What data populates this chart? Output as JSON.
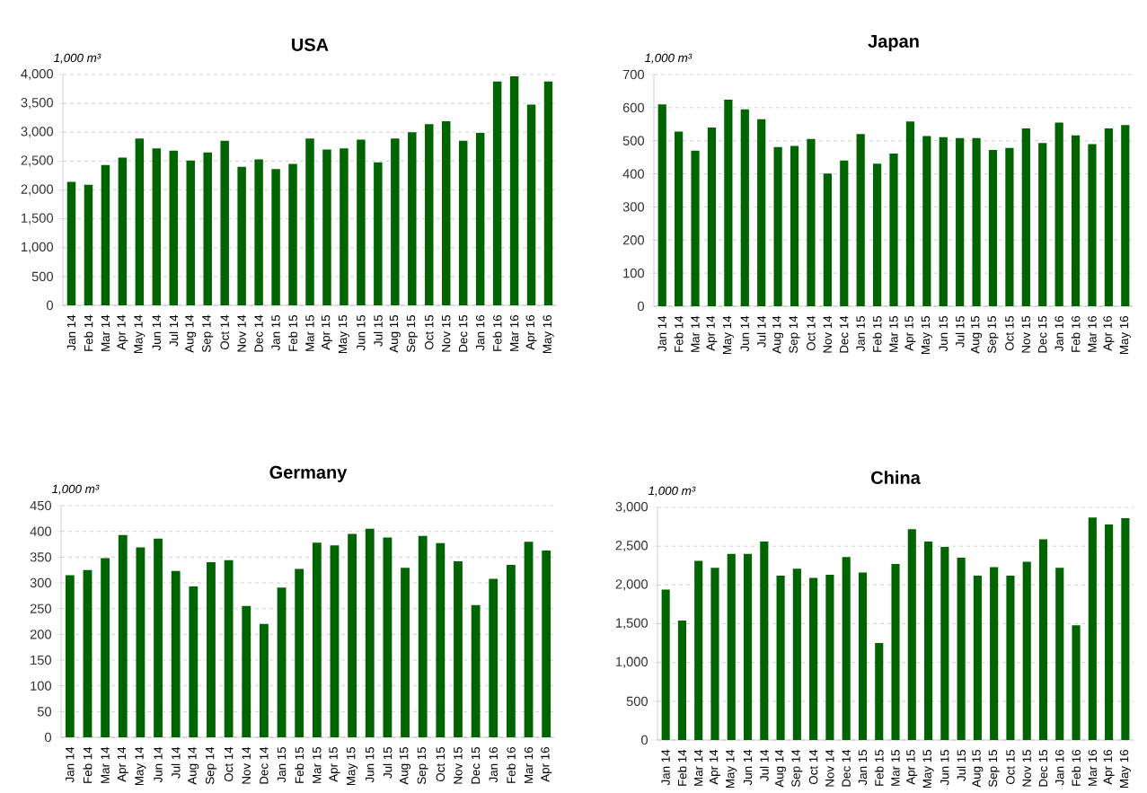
{
  "chart_data": [
    {
      "type": "bar",
      "title": "USA",
      "ylabel": "1,000 m³",
      "color": "#006400",
      "grid": "y",
      "categories": [
        "Jan 14",
        "Feb 14",
        "Mar 14",
        "Apr 14",
        "May 14",
        "Jun 14",
        "Jul 14",
        "Aug 14",
        "Sep 14",
        "Oct 14",
        "Nov 14",
        "Dec 14",
        "Jan 15",
        "Feb 15",
        "Mar 15",
        "Apr 15",
        "May 15",
        "Jun 15",
        "Jul 15",
        "Aug 15",
        "Sep 15",
        "Oct 15",
        "Nov 15",
        "Dec 15",
        "Jan 16",
        "Feb 16",
        "Mar 16",
        "Apr 16",
        "May 16"
      ],
      "values": [
        2140,
        2090,
        2430,
        2560,
        2890,
        2720,
        2680,
        2510,
        2650,
        2850,
        2400,
        2530,
        2360,
        2450,
        2890,
        2700,
        2720,
        2870,
        2480,
        2890,
        3000,
        3140,
        3190,
        2850,
        2990,
        3880,
        3970,
        3480,
        3880
      ],
      "ylim": [
        0,
        4000
      ],
      "yticks": [
        0,
        500,
        {
          "value": 1000,
          "label": "1,000"
        },
        {
          "value": 1500,
          "label": "1,500"
        },
        {
          "value": 2000,
          "label": "2,000"
        },
        {
          "value": 2500,
          "label": "2,500"
        },
        {
          "value": 3000,
          "label": "3,000"
        },
        {
          "value": 3500,
          "label": "3,500"
        },
        {
          "value": 4000,
          "label": "4,000"
        }
      ]
    },
    {
      "type": "bar",
      "title": "Japan",
      "ylabel": "1,000 m³",
      "color": "#006400",
      "grid": "y",
      "categories": [
        "Jan 14",
        "Feb 14",
        "Mar 14",
        "Apr 14",
        "May 14",
        "Jun 14",
        "Jul 14",
        "Aug 14",
        "Sep 14",
        "Oct 14",
        "Nov 14",
        "Dec 14",
        "Jan 15",
        "Feb 15",
        "Mar 15",
        "Apr 15",
        "May 15",
        "Jun 15",
        "Jul 15",
        "Aug 15",
        "Sep 15",
        "Oct 15",
        "Nov 15",
        "Dec 15",
        "Jan 16",
        "Feb 16",
        "Mar 16",
        "Apr 16",
        "May 16"
      ],
      "values": [
        610,
        528,
        470,
        540,
        624,
        595,
        565,
        481,
        484,
        505,
        401,
        440,
        520,
        431,
        461,
        558,
        514,
        511,
        508,
        508,
        472,
        478,
        537,
        493,
        555,
        516,
        490,
        537,
        547
      ],
      "ylim": [
        0,
        700
      ],
      "yticks": [
        0,
        100,
        200,
        300,
        400,
        500,
        600,
        700
      ]
    },
    {
      "type": "bar",
      "title": "Germany",
      "ylabel": "1,000 m³",
      "color": "#006400",
      "grid": "y",
      "categories": [
        "Jan 14",
        "Feb 14",
        "Mar 14",
        "Apr 14",
        "May 14",
        "Jun 14",
        "Jul 14",
        "Aug 14",
        "Sep 14",
        "Oct 14",
        "Nov 14",
        "Dec 14",
        "Jan 15",
        "Feb 15",
        "Mar 15",
        "Apr 15",
        "May 15",
        "Jun 15",
        "Jul 15",
        "Aug 15",
        "Sep 15",
        "Oct 15",
        "Nov 15",
        "Dec 15",
        "Jan 16",
        "Feb 16",
        "Mar 16",
        "Apr 16"
      ],
      "values": [
        315,
        325,
        348,
        393,
        369,
        386,
        323,
        293,
        340,
        344,
        255,
        220,
        291,
        327,
        378,
        373,
        395,
        405,
        388,
        329,
        391,
        377,
        342,
        257,
        308,
        335,
        380,
        363
      ],
      "ylim": [
        0,
        450
      ],
      "yticks": [
        0,
        50,
        100,
        150,
        200,
        250,
        300,
        350,
        400,
        450
      ]
    },
    {
      "type": "bar",
      "title": "China",
      "ylabel": "1,000 m³",
      "color": "#006400",
      "grid": "y",
      "categories": [
        "Jan 14",
        "Feb 14",
        "Mar 14",
        "Apr 14",
        "May 14",
        "Jun 14",
        "Jul 14",
        "Aug 14",
        "Sep 14",
        "Oct 14",
        "Nov 14",
        "Dec 14",
        "Jan 15",
        "Feb 15",
        "Mar 15",
        "Apr 15",
        "May 15",
        "Jun 15",
        "Jul 15",
        "Aug 15",
        "Sep 15",
        "Oct 15",
        "Nov 15",
        "Dec 15",
        "Jan 16",
        "Feb 16",
        "Mar 16",
        "Apr 16",
        "May 16"
      ],
      "values": [
        1940,
        1540,
        2310,
        2220,
        2400,
        2400,
        2560,
        2120,
        2210,
        2090,
        2130,
        2360,
        2160,
        1250,
        2270,
        2720,
        2560,
        2490,
        2350,
        2120,
        2230,
        2120,
        2300,
        2590,
        2220,
        1480,
        2870,
        2780,
        2860
      ],
      "ylim": [
        0,
        3000
      ],
      "yticks": [
        0,
        500,
        {
          "value": 1000,
          "label": "1,000"
        },
        {
          "value": 1500,
          "label": "1,500"
        },
        {
          "value": 2000,
          "label": "2,000"
        },
        {
          "value": 2500,
          "label": "2,500"
        },
        {
          "value": 3000,
          "label": "3,000"
        }
      ]
    }
  ]
}
